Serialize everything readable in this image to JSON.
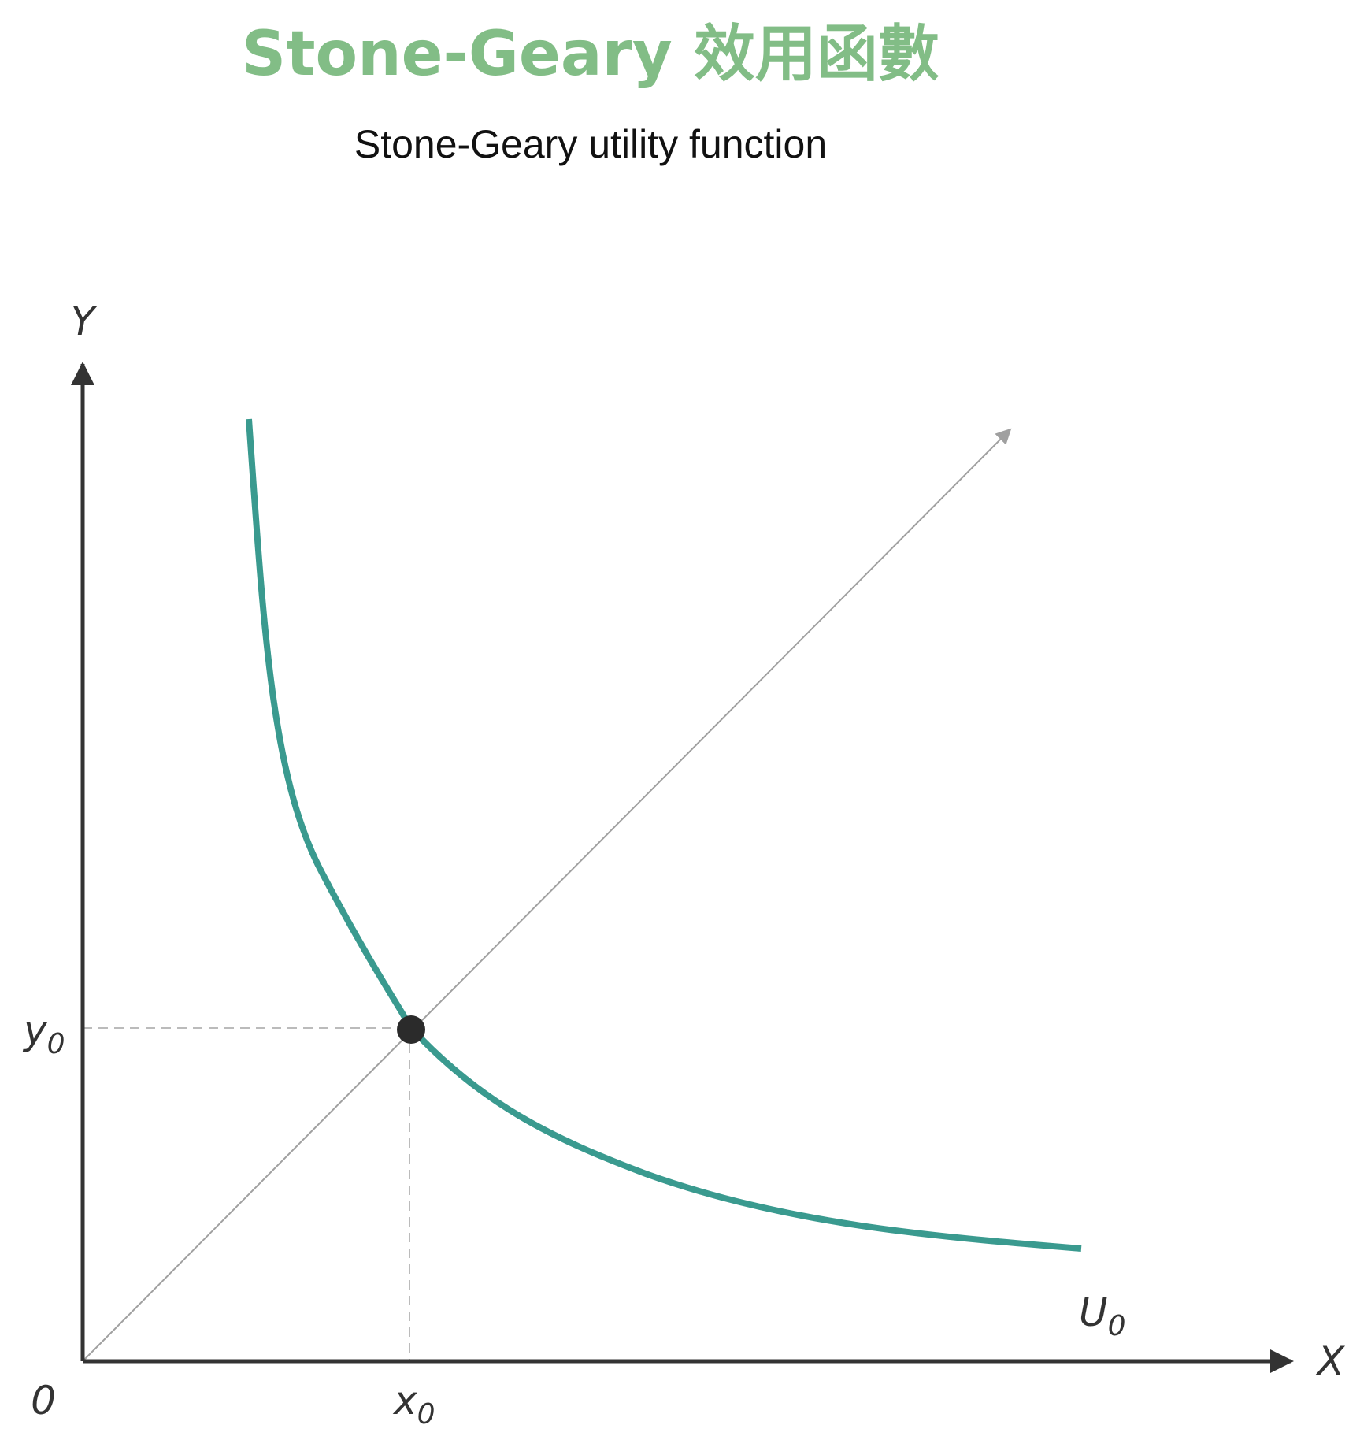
{
  "title": "Stone-Geary 效用函數",
  "subtitle": "Stone-Geary utility function",
  "axes": {
    "x_label": "X",
    "y_label": "Y",
    "origin_label": "0"
  },
  "markers": {
    "x0": {
      "base": "x",
      "sub": "0"
    },
    "y0": {
      "base": "y",
      "sub": "0"
    }
  },
  "curve_label": {
    "base": "U",
    "sub": "0"
  },
  "colors": {
    "title": "#82bd86",
    "curve": "#3a9a8f",
    "axes": "#333333",
    "ray": "#a0a0a0",
    "guides": "#bbbbbb",
    "point": "#2b2b2b"
  },
  "elements": {
    "indifference_curve": "U0",
    "ray_from_origin": "expansion path",
    "point": "(x0, y0)"
  }
}
